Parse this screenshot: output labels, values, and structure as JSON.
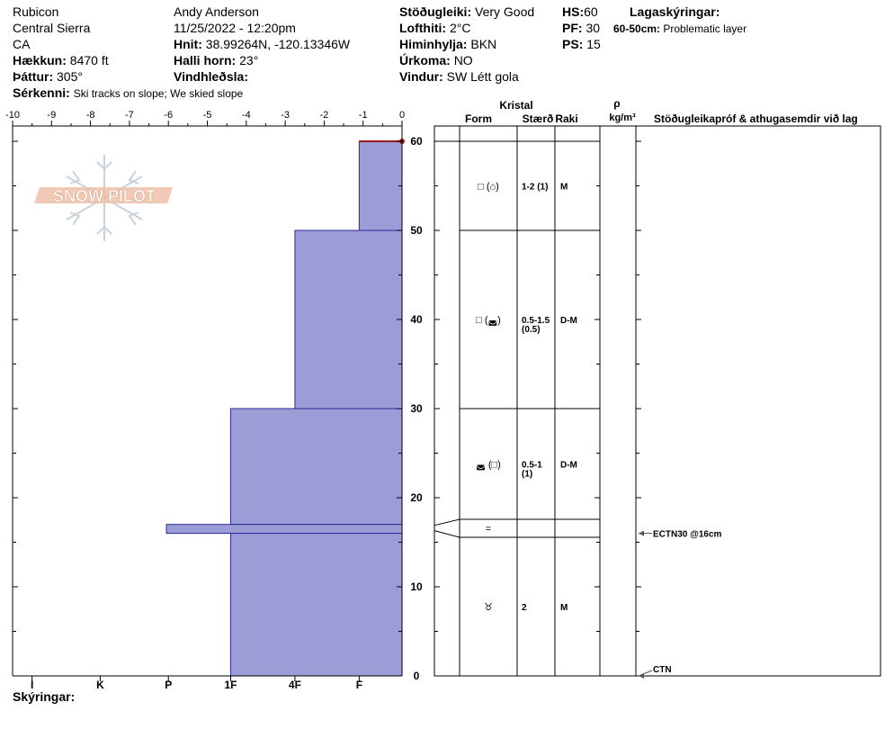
{
  "header": {
    "location": "Rubicon",
    "range": "Central Sierra",
    "state": "CA",
    "elevation_label": "Hækkun:",
    "elevation": "8470 ft",
    "aspect_label": "Þáttur:",
    "aspect": "305°",
    "features_label": "Sérkenni:",
    "features": "Ski tracks on slope; We skied slope",
    "observer": "Andy Anderson",
    "datetime": "11/25/2022 - 12:20pm",
    "coords_label": "Hnit:",
    "coords": "38.99264N, -120.13346W",
    "slope_label": "Halli horn:",
    "slope": "23°",
    "wind_loading_label": "Vindhleðsla:",
    "wind_loading": "",
    "stability_label": "Stöðugleiki:",
    "stability": "Very Good",
    "air_temp_label": "Lofthiti:",
    "air_temp": "2°C",
    "sky_label": "Himinhylja:",
    "sky": "BKN",
    "precip_label": "Úrkoma:",
    "precip": "NO",
    "wind_label": "Vindur:",
    "wind": "SW Létt gola",
    "hs_label": "HS:",
    "hs": "60",
    "pf_label": "PF:",
    "pf": "30",
    "ps_label": "PS:",
    "ps": "15",
    "layer_notes_label": "Lagaskýringar:",
    "layer_note_range": "60-50cm:",
    "layer_note_text": "Problematic layer"
  },
  "logo_text": "SNOW PILOT",
  "columns": {
    "crystal": "Kristal",
    "form": "Form",
    "size": "Stærð",
    "moisture": "Raki",
    "rho": "ρ",
    "density_unit": "kg/m³",
    "tests": "Stöðugleikapróf & athugasemdir við lag"
  },
  "footer_label": "Skýringar:",
  "chart_data": {
    "type": "bar",
    "orientation": "horizontal-profile",
    "hardness_axis": {
      "top_ticks": [
        "-10",
        "-9",
        "-8",
        "-7",
        "-6",
        "-5",
        "-4",
        "-3",
        "-2",
        "-1",
        "0"
      ],
      "bottom_labels": [
        "I",
        "K",
        "P",
        "1F",
        "4F",
        "F"
      ],
      "range": [
        -10,
        0
      ]
    },
    "depth_axis": {
      "ticks": [
        "0",
        "10",
        "20",
        "30",
        "40",
        "50",
        "60"
      ],
      "range": [
        0,
        60
      ],
      "unit": "cm"
    },
    "layers": [
      {
        "top": 60,
        "bottom": 50,
        "hardness": -1.1,
        "form": "□ (⌂)",
        "size": "1-2 (1)",
        "moisture": "M"
      },
      {
        "top": 50,
        "bottom": 30,
        "hardness": -2.75,
        "form": "□ (◛)",
        "size": "0.5-1.5 (0.5)",
        "moisture": "D-M"
      },
      {
        "top": 30,
        "bottom": 17,
        "hardness": -4.4,
        "form": "◛ (□)",
        "size": "0.5-1 (1)",
        "moisture": "D-M"
      },
      {
        "top": 17,
        "bottom": 16,
        "hardness": -6.05,
        "form": "=",
        "size": "",
        "moisture": ""
      },
      {
        "top": 16,
        "bottom": 0,
        "hardness": -4.4,
        "form": "♉",
        "size": "2",
        "moisture": "M"
      }
    ],
    "surface_marker": {
      "depth": 60,
      "color": "#a01818"
    },
    "tests": [
      {
        "depth": 16,
        "label": "ECTN30 @16cm"
      },
      {
        "depth": 0,
        "label": "CTN"
      }
    ],
    "colors": {
      "fill": "#9c9cd6",
      "stroke": "#2a2a9a"
    }
  }
}
